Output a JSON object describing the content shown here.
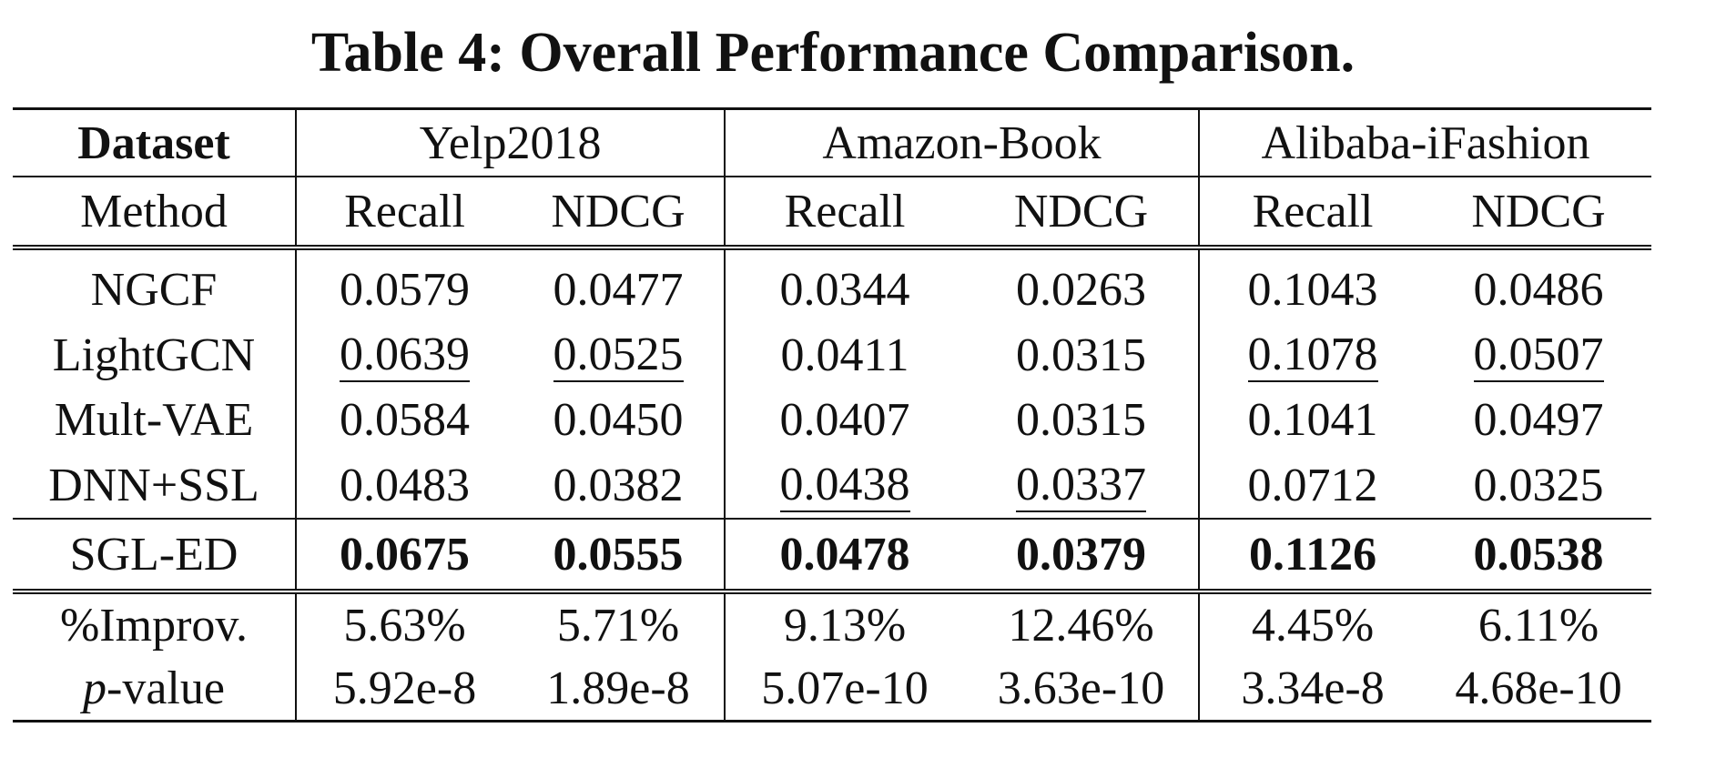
{
  "caption": "Table 4: Overall Performance Comparison.",
  "table": {
    "dataset_label": "Dataset",
    "method_label": "Method",
    "datasets": [
      "Yelp2018",
      "Amazon-Book",
      "Alibaba-iFashion"
    ],
    "metrics": [
      "Recall",
      "NDCG",
      "Recall",
      "NDCG",
      "Recall",
      "NDCG"
    ],
    "rows": [
      {
        "method": "NGCF",
        "values": [
          "0.0579",
          "0.0477",
          "0.0344",
          "0.0263",
          "0.1043",
          "0.0486"
        ],
        "underlined": [
          false,
          false,
          false,
          false,
          false,
          false
        ]
      },
      {
        "method": "LightGCN",
        "values": [
          "0.0639",
          "0.0525",
          "0.0411",
          "0.0315",
          "0.1078",
          "0.0507"
        ],
        "underlined": [
          true,
          true,
          false,
          false,
          true,
          true
        ]
      },
      {
        "method": "Mult-VAE",
        "values": [
          "0.0584",
          "0.0450",
          "0.0407",
          "0.0315",
          "0.1041",
          "0.0497"
        ],
        "underlined": [
          false,
          false,
          false,
          false,
          false,
          false
        ]
      },
      {
        "method": "DNN+SSL",
        "values": [
          "0.0483",
          "0.0382",
          "0.0438",
          "0.0337",
          "0.0712",
          "0.0325"
        ],
        "underlined": [
          false,
          false,
          true,
          true,
          false,
          false
        ]
      }
    ],
    "best": {
      "method": "SGL-ED",
      "values": [
        "0.0675",
        "0.0555",
        "0.0478",
        "0.0379",
        "0.1126",
        "0.0538"
      ]
    },
    "improvement": {
      "label": "%Improv.",
      "values": [
        "5.63%",
        "5.71%",
        "9.13%",
        "12.46%",
        "4.45%",
        "6.11%"
      ]
    },
    "pvalue": {
      "label_italic": "p",
      "label_rest": "-value",
      "values": [
        "5.92e-8",
        "1.89e-8",
        "5.07e-10",
        "3.63e-10",
        "3.34e-8",
        "4.68e-10"
      ]
    }
  }
}
